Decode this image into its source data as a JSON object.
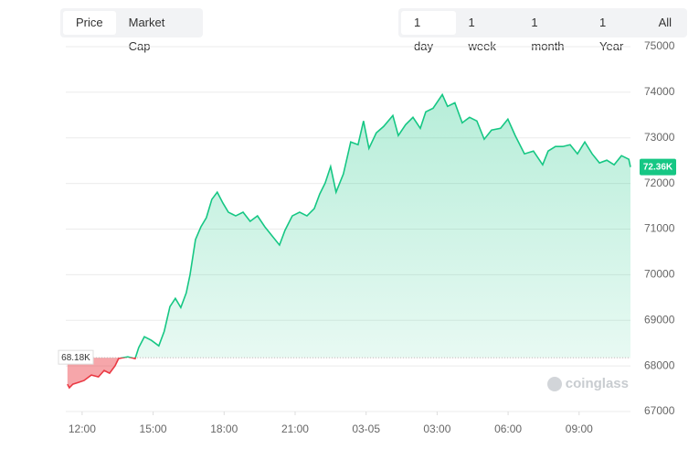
{
  "chart_data": {
    "type": "line",
    "tabs_left": [
      "Price",
      "Market Cap"
    ],
    "tabs_left_selected": 0,
    "tabs_right": [
      "1 day",
      "1 week",
      "1 month",
      "1 Year",
      "All"
    ],
    "tabs_right_selected": 0,
    "watermark": "coinglass",
    "x": [
      11.38,
      11.46,
      11.61,
      11.85,
      12.08,
      12.39,
      12.69,
      12.93,
      13.16,
      13.39,
      13.54,
      13.93,
      14.24,
      14.39,
      14.63,
      14.93,
      15.24,
      15.47,
      15.71,
      15.94,
      16.17,
      16.4,
      16.56,
      16.79,
      17.02,
      17.25,
      17.48,
      17.71,
      17.95,
      18.18,
      18.49,
      18.8,
      19.1,
      19.41,
      19.72,
      20.03,
      20.34,
      20.57,
      20.88,
      21.19,
      21.5,
      21.81,
      22.04,
      22.27,
      22.5,
      22.73,
      23.04,
      23.35,
      23.66,
      23.89,
      24.12,
      24.43,
      24.74,
      25.13,
      25.36,
      25.67,
      25.98,
      26.29,
      26.52,
      26.83,
      27.22,
      27.44,
      27.75,
      28.06,
      28.37,
      28.68,
      28.99,
      29.3,
      29.68,
      29.99,
      30.3,
      30.69,
      31.07,
      31.46,
      31.69,
      32.0,
      32.31,
      32.62,
      32.93,
      33.24,
      33.55,
      33.86,
      34.17,
      34.48,
      34.79,
      35.1,
      35.17
    ],
    "values": [
      67600,
      67520,
      67600,
      67640,
      67680,
      67800,
      67760,
      67900,
      67840,
      68000,
      68160,
      68200,
      68160,
      68400,
      68640,
      68560,
      68440,
      68760,
      69300,
      69480,
      69280,
      69600,
      70000,
      70770,
      71050,
      71250,
      71650,
      71810,
      71570,
      71370,
      71290,
      71370,
      71170,
      71290,
      71050,
      70850,
      70650,
      70970,
      71290,
      71370,
      71290,
      71450,
      71770,
      72010,
      72370,
      71810,
      72210,
      72910,
      72850,
      73370,
      72770,
      73110,
      73250,
      73490,
      73050,
      73290,
      73450,
      73210,
      73570,
      73650,
      73950,
      73690,
      73770,
      73330,
      73450,
      73370,
      72970,
      73170,
      73210,
      73410,
      73050,
      72650,
      72710,
      72410,
      72710,
      72810,
      72810,
      72850,
      72650,
      72910,
      72650,
      72450,
      72510,
      72410,
      72610,
      72530,
      72360
    ],
    "up_color": "#16c784",
    "down_color": "#ea3943",
    "baseline": {
      "value": 68180,
      "label": "68.18K"
    },
    "last_price": {
      "value": 72360,
      "label": "72.36K"
    },
    "xlim": [
      11.31,
      35.17
    ],
    "xticks": [
      {
        "value": 12,
        "label": "12:00"
      },
      {
        "value": 15,
        "label": "15:00"
      },
      {
        "value": 18,
        "label": "18:00"
      },
      {
        "value": 21,
        "label": "21:00"
      },
      {
        "value": 24,
        "label": "03-05"
      },
      {
        "value": 27,
        "label": "03:00"
      },
      {
        "value": 30,
        "label": "06:00"
      },
      {
        "value": 33,
        "label": "09:00"
      }
    ],
    "ylim": [
      67000,
      75000
    ],
    "yticks": [
      67000,
      68000,
      69000,
      70000,
      71000,
      72000,
      73000,
      74000,
      75000
    ],
    "grid": true
  }
}
